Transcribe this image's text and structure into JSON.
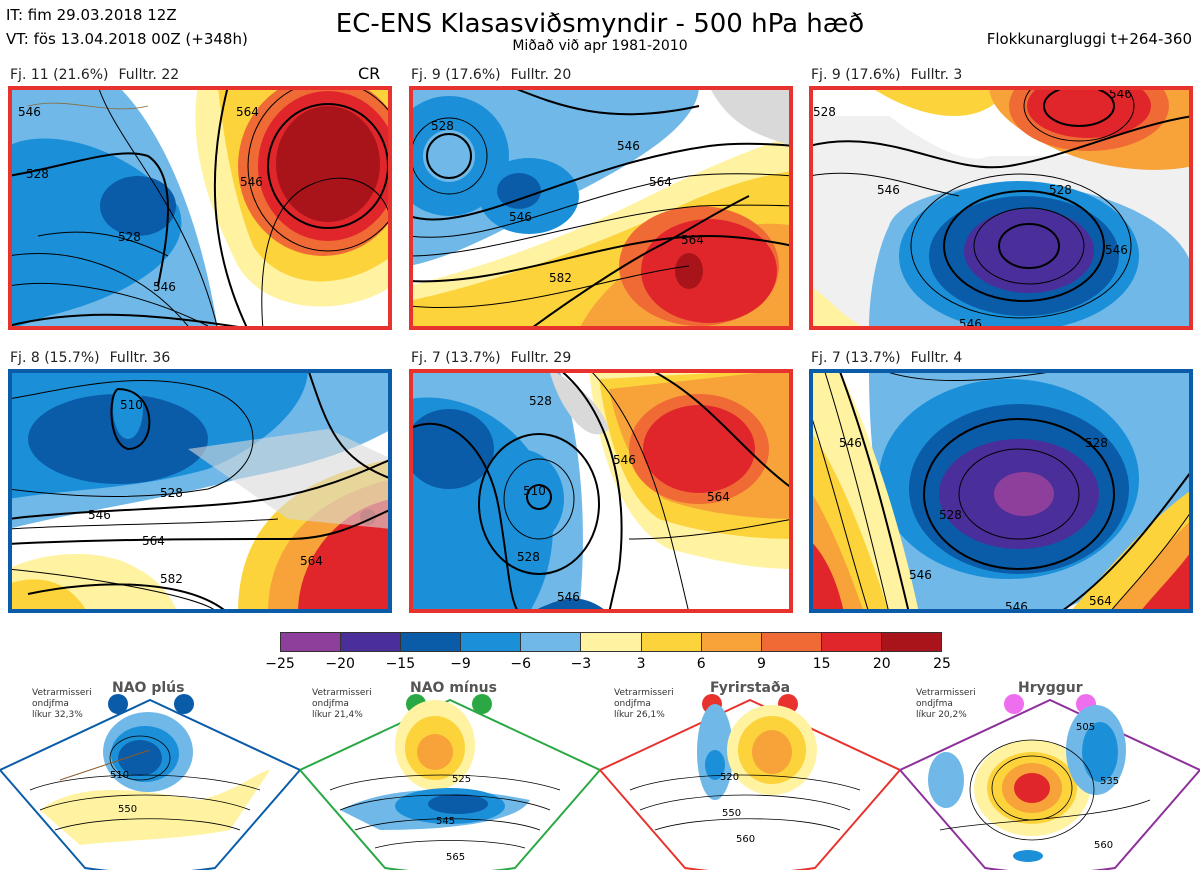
{
  "header": {
    "init_time": "IT: fim 29.03.2018 12Z",
    "valid_time": "VT: fös 13.04.2018 00Z  (+348h)",
    "title": "EC-ENS Klasasviðsmyndir - 500 hPa hæð",
    "subtitle": "Miðað við apr 1981-2010",
    "window": "Flokkunargluggi t+264-360"
  },
  "panels": [
    {
      "cluster": "Fj. 11 (21.6%)",
      "representative": "Fulltr. 22",
      "regime_tag": "CR",
      "regime_color": "#e8322e",
      "contours": [
        "546",
        "528",
        "528",
        "546",
        "564",
        "546"
      ]
    },
    {
      "cluster": "Fj. 9 (17.6%)",
      "representative": "Fulltr. 20",
      "regime_color": "#e8322e",
      "contours": [
        "528",
        "546",
        "546",
        "564",
        "582",
        "564"
      ]
    },
    {
      "cluster": "Fj. 9 (17.6%)",
      "representative": "Fulltr. 3",
      "regime_color": "#e8322e",
      "contours": [
        "528",
        "546",
        "528",
        "546",
        "546",
        "546"
      ]
    },
    {
      "cluster": "Fj. 8 (15.7%)",
      "representative": "Fulltr. 36",
      "regime_color": "#0a5ca8",
      "contours": [
        "510",
        "528",
        "546",
        "564",
        "582",
        "564"
      ]
    },
    {
      "cluster": "Fj. 7 (13.7%)",
      "representative": "Fulltr. 29",
      "regime_color": "#e8322e",
      "contours": [
        "510",
        "528",
        "546",
        "546",
        "564",
        "528"
      ]
    },
    {
      "cluster": "Fj. 7 (13.7%)",
      "representative": "Fulltr. 4",
      "regime_color": "#0a5ca8",
      "contours": [
        "528",
        "528",
        "546",
        "546",
        "564",
        "546"
      ]
    }
  ],
  "colorbar": {
    "ticks": [
      "−25",
      "−20",
      "−15",
      "−9",
      "−6",
      "−3",
      "3",
      "6",
      "9",
      "15",
      "20",
      "25"
    ],
    "colors": [
      "#8e3f9c",
      "#4a2f9a",
      "#0a5ca8",
      "#1b90d9",
      "#6fb8e8",
      "#ffffff",
      "#fff2a0",
      "#fcd33a",
      "#f7a33a",
      "#ef6a34",
      "#e0262b",
      "#a8141a"
    ]
  },
  "regimes": [
    {
      "name": "NAO plús",
      "season": "Vetrarmisseri",
      "months": "ondjfma",
      "probability": "líkur 32,3%",
      "color": "#0a5ca8",
      "dot_color": "#0a5ca8",
      "contours": [
        "510",
        "550"
      ]
    },
    {
      "name": "NAO mínus",
      "season": "Vetrarmisseri",
      "months": "ondjfma",
      "probability": "líkur 21,4%",
      "color": "#2aa844",
      "dot_color": "#2aa844",
      "contours": [
        "525",
        "545",
        "565"
      ]
    },
    {
      "name": "Fyrirstaða",
      "season": "Vetrarmisseri",
      "months": "ondjfma",
      "probability": "líkur 26,1%",
      "color": "#e8322e",
      "dot_color": "#e8322e",
      "contours": [
        "520",
        "550",
        "560"
      ]
    },
    {
      "name": "Hryggur",
      "season": "Vetrarmisseri",
      "months": "ondjfma",
      "probability": "líkur 20,2%",
      "color": "#8e2f9c",
      "dot_color": "#ee6fee",
      "contours": [
        "505",
        "535",
        "560"
      ]
    }
  ]
}
